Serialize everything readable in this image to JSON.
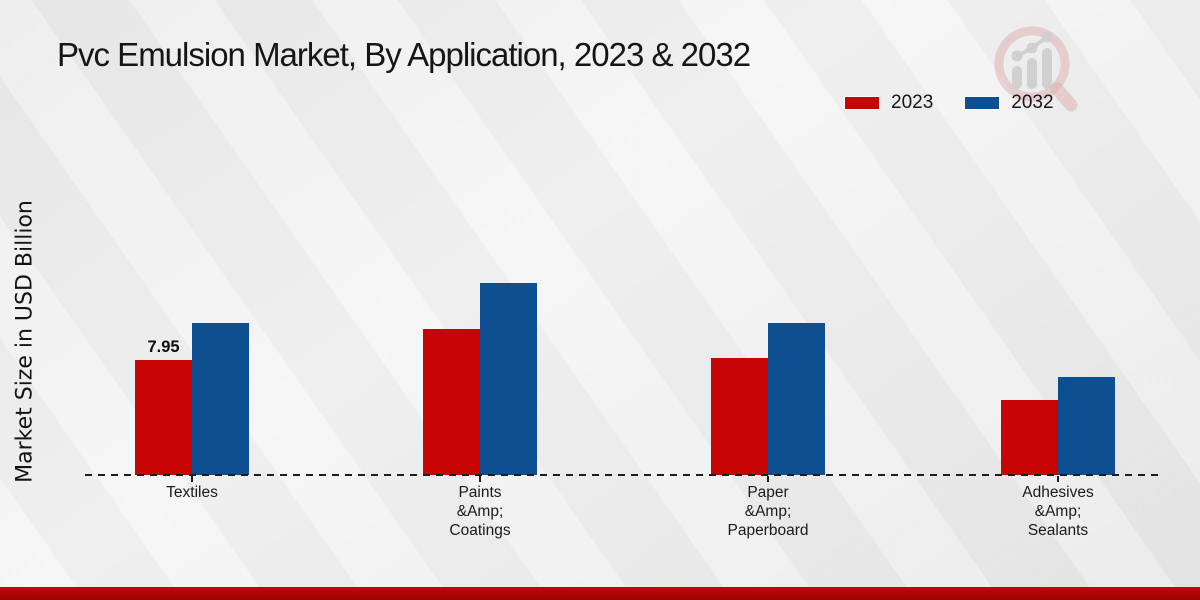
{
  "title": "Pvc Emulsion Market, By Application, 2023 & 2032",
  "y_axis_label": "Market Size in USD Billion",
  "colors": {
    "series_2023": "#c80505",
    "series_2032": "#0e4f92",
    "footer_accent": "#b50505",
    "baseline": "#1d1d1d",
    "text": "#161616",
    "logo_pink": "#dca3a3",
    "logo_gray": "#c9c9c9"
  },
  "legend": {
    "items": [
      {
        "label": "2023",
        "color": "#c80505"
      },
      {
        "label": "2032",
        "color": "#0e4f92"
      }
    ]
  },
  "chart_data": {
    "type": "bar",
    "title": "Pvc Emulsion Market, By Application, 2023 & 2032",
    "xlabel": "",
    "ylabel": "Market Size in USD Billion",
    "categories": [
      [
        "Textiles"
      ],
      [
        "Paints",
        "&Amp;",
        "Coatings"
      ],
      [
        "Paper",
        "&Amp;",
        "Paperboard"
      ],
      [
        "Adhesives",
        "&Amp;",
        "Sealants"
      ]
    ],
    "series": [
      {
        "name": "2023",
        "color": "#c80505",
        "values": [
          7.95,
          10.1,
          8.1,
          5.2
        ]
      },
      {
        "name": "2032",
        "color": "#0e4f92",
        "values": [
          10.5,
          13.3,
          10.5,
          6.8
        ]
      }
    ],
    "value_labels": [
      {
        "series": "2023",
        "category_index": 0,
        "text": "7.95"
      }
    ],
    "ylim": [
      0,
      14
    ],
    "grid": false,
    "legend_position": "top-right",
    "baseline_style": "dashed",
    "y_axis_ticks_visible": false
  }
}
